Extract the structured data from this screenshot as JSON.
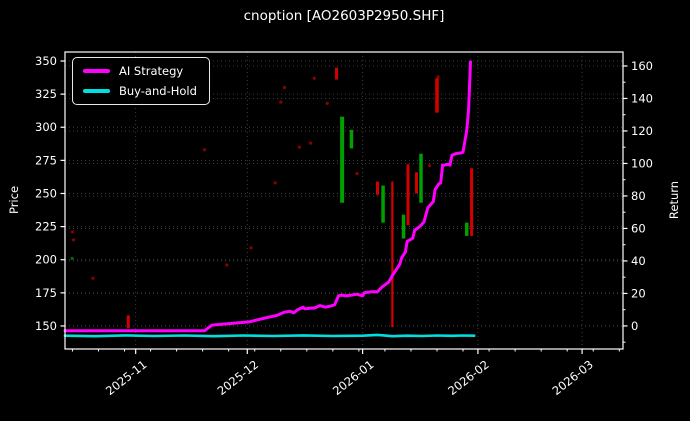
{
  "header": {
    "title": "cnoption [AO2603P2950.SHF]"
  },
  "colors": {
    "background": "#000000",
    "text": "#ffffff",
    "grid": "#3d3d3d",
    "spine": "#ffffff",
    "strategy": "#ff00ff",
    "buyhold": "#00dede",
    "candle_up": "#00a000",
    "candle_down": "#d40000",
    "dot_red": "#8b0000",
    "dot_green": "#006b00"
  },
  "legend": {
    "items": [
      {
        "label": "AI Strategy",
        "color_key": "strategy"
      },
      {
        "label": "Buy-and-Hold",
        "color_key": "buyhold"
      }
    ]
  },
  "chart_data": {
    "type": "line",
    "title": "cnoption [AO2603P2950.SHF]",
    "left_axis": {
      "label": "Price",
      "ticks": [
        150,
        175,
        200,
        225,
        250,
        275,
        300,
        325,
        350
      ],
      "range": [
        132.6,
        356.8
      ]
    },
    "right_axis": {
      "label": "Return",
      "ticks": [
        0,
        20,
        40,
        60,
        80,
        100,
        120,
        140,
        160
      ],
      "minor_ticks": [
        -10,
        10,
        30,
        50,
        70,
        90,
        110,
        130,
        150
      ],
      "range": [
        -14.2,
        168.6
      ]
    },
    "x_axis": {
      "span_days": 150,
      "start_date": "2025-10-13",
      "ticks": [
        {
          "label": "2025-11",
          "d": 19
        },
        {
          "label": "2025-12",
          "d": 49
        },
        {
          "label": "2026-01",
          "d": 80
        },
        {
          "label": "2026-02",
          "d": 111
        },
        {
          "label": "2026-03",
          "d": 139
        }
      ],
      "minor_first_d": 2,
      "minor_step_d": 7
    },
    "series": [
      {
        "name": "Buy-and-Hold",
        "axis": "right",
        "color_key": "buyhold",
        "width": 2.6,
        "points": [
          [
            0,
            -6
          ],
          [
            8,
            -6.3
          ],
          [
            16,
            -5.8
          ],
          [
            24,
            -6.2
          ],
          [
            32,
            -5.9
          ],
          [
            40,
            -6.3
          ],
          [
            48,
            -5.9
          ],
          [
            56,
            -6.2
          ],
          [
            64,
            -5.8
          ],
          [
            72,
            -6.2
          ],
          [
            80,
            -6
          ],
          [
            84,
            -5.5
          ],
          [
            88,
            -6.3
          ],
          [
            92,
            -6
          ],
          [
            96,
            -6.2
          ],
          [
            100,
            -5.9
          ],
          [
            104,
            -6.1
          ],
          [
            107,
            -5.9
          ],
          [
            110,
            -6
          ]
        ]
      },
      {
        "name": "AI Strategy",
        "axis": "right",
        "color_key": "strategy",
        "width": 3,
        "points": [
          [
            0,
            -3
          ],
          [
            37.5,
            -3
          ],
          [
            39.5,
            0.5
          ],
          [
            49.5,
            2.5
          ],
          [
            54,
            5
          ],
          [
            57,
            6.5
          ],
          [
            59,
            8.5
          ],
          [
            60.5,
            9
          ],
          [
            61.5,
            8
          ],
          [
            62.5,
            10
          ],
          [
            64,
            11.5
          ],
          [
            64.5,
            10.5
          ],
          [
            66,
            11
          ],
          [
            67,
            11
          ],
          [
            68.5,
            12.5
          ],
          [
            70,
            11.5
          ],
          [
            71,
            12
          ],
          [
            72.5,
            13
          ],
          [
            73.5,
            18.5
          ],
          [
            74.5,
            19
          ],
          [
            75.5,
            18.5
          ],
          [
            77,
            19
          ],
          [
            78.5,
            19.5
          ],
          [
            80,
            18.5
          ],
          [
            80.5,
            20.5
          ],
          [
            82.5,
            21
          ],
          [
            84,
            21
          ],
          [
            85,
            23.5
          ],
          [
            87,
            27
          ],
          [
            88,
            31
          ],
          [
            89,
            34.5
          ],
          [
            90,
            38
          ],
          [
            90.5,
            42
          ],
          [
            91.5,
            45.5
          ],
          [
            92,
            52
          ],
          [
            93.5,
            54
          ],
          [
            94,
            59
          ],
          [
            95,
            60.5
          ],
          [
            95.5,
            61.5
          ],
          [
            96.5,
            64
          ],
          [
            97.5,
            72.5
          ],
          [
            98,
            74
          ],
          [
            99,
            76.5
          ],
          [
            99.5,
            84
          ],
          [
            100.5,
            87.5
          ],
          [
            101,
            88
          ],
          [
            101.5,
            99
          ],
          [
            102,
            99
          ],
          [
            103,
            99.5
          ],
          [
            103.5,
            99
          ],
          [
            104,
            105
          ],
          [
            105,
            106
          ],
          [
            106.5,
            106.5
          ],
          [
            107,
            107
          ],
          [
            108,
            120.5
          ],
          [
            108.5,
            133
          ],
          [
            109,
            162.5
          ]
        ]
      }
    ],
    "candles": [
      {
        "d": 17,
        "low": 148.5,
        "high": 158,
        "dir": "down",
        "w": 3
      },
      {
        "d": 73,
        "low": 336,
        "high": 345,
        "dir": "down",
        "w": 3
      },
      {
        "d": 74.5,
        "low": 243,
        "high": 308,
        "dir": "up",
        "w": 4
      },
      {
        "d": 77,
        "low": 284,
        "high": 298,
        "dir": "up",
        "w": 3.5
      },
      {
        "d": 84,
        "low": 249,
        "high": 259,
        "dir": "down",
        "w": 3
      },
      {
        "d": 85.5,
        "low": 228,
        "high": 256,
        "dir": "up",
        "w": 3.5
      },
      {
        "d": 88,
        "low": 149,
        "high": 259,
        "dir": "down",
        "w": 2.2
      },
      {
        "d": 91,
        "low": 216,
        "high": 234,
        "dir": "up",
        "w": 3.5
      },
      {
        "d": 92.2,
        "low": 226,
        "high": 272,
        "dir": "down",
        "w": 3
      },
      {
        "d": 94.5,
        "low": 250,
        "high": 266,
        "dir": "down",
        "w": 3
      },
      {
        "d": 95.7,
        "low": 243,
        "high": 280,
        "dir": "up",
        "w": 3.5
      },
      {
        "d": 100,
        "low": 311,
        "high": 337,
        "dir": "down",
        "w": 3.5
      },
      {
        "d": 108,
        "low": 218,
        "high": 228,
        "dir": "up",
        "w": 3.5
      },
      {
        "d": 109.3,
        "low": 218,
        "high": 269,
        "dir": "down",
        "w": 3
      }
    ],
    "dots": [
      {
        "d": 2,
        "price": 221,
        "dir": "down"
      },
      {
        "d": 2.3,
        "price": 215,
        "dir": "down"
      },
      {
        "d": 1.9,
        "price": 201,
        "dir": "up"
      },
      {
        "d": 7.5,
        "price": 186,
        "dir": "down"
      },
      {
        "d": 37.5,
        "price": 283,
        "dir": "down"
      },
      {
        "d": 43.5,
        "price": 196,
        "dir": "down"
      },
      {
        "d": 50,
        "price": 209,
        "dir": "down"
      },
      {
        "d": 56.5,
        "price": 258,
        "dir": "down"
      },
      {
        "d": 58,
        "price": 319,
        "dir": "down"
      },
      {
        "d": 59,
        "price": 330,
        "dir": "down"
      },
      {
        "d": 63,
        "price": 285,
        "dir": "down"
      },
      {
        "d": 66,
        "price": 288,
        "dir": "down"
      },
      {
        "d": 67,
        "price": 337,
        "dir": "down"
      },
      {
        "d": 70.5,
        "price": 318,
        "dir": "down"
      },
      {
        "d": 78.5,
        "price": 265,
        "dir": "down"
      },
      {
        "d": 98,
        "price": 271,
        "dir": "down"
      },
      {
        "d": 100.3,
        "price": 338,
        "dir": "down"
      }
    ]
  }
}
